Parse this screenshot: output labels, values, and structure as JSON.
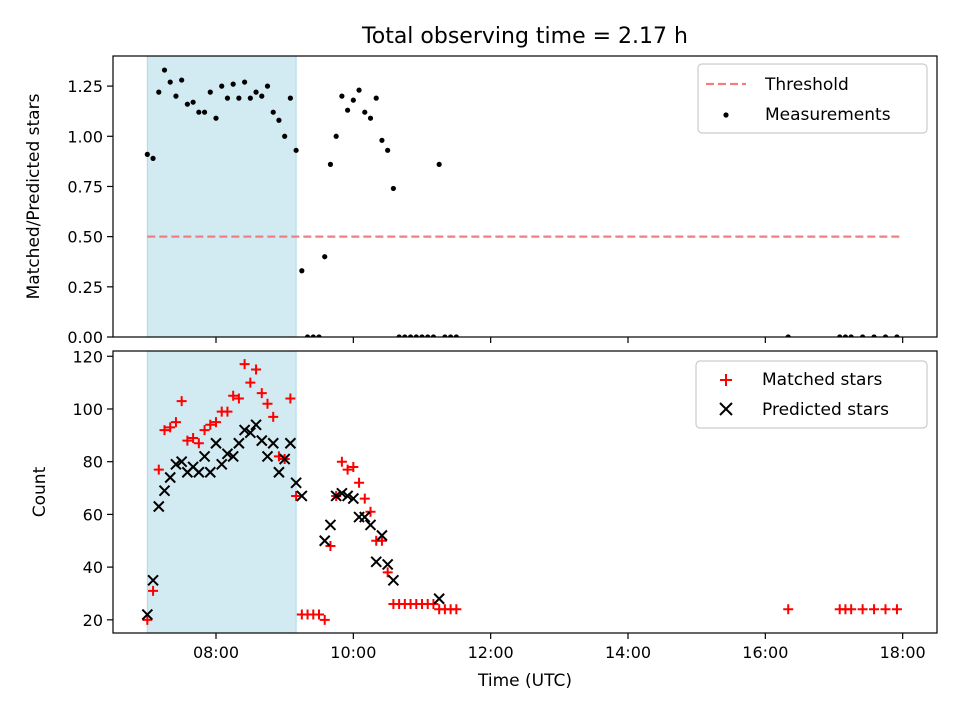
{
  "figure_title": "Total observing time = 2.17 h",
  "colors": {
    "threshold": "#f08080",
    "measurement": "#000000",
    "matched": "#ff0000",
    "predicted": "#000000",
    "shade": "#add8e6"
  },
  "chart_data": [
    {
      "type": "scatter",
      "title": "Total observing time = 2.17 h",
      "xlabel": "",
      "ylabel": "Matched/Predicted stars",
      "xlim": [
        "06:30",
        "18:30"
      ],
      "ylim": [
        0,
        1.4
      ],
      "yticks": [
        "0.00",
        "0.25",
        "0.50",
        "0.75",
        "1.00",
        "1.25"
      ],
      "legend_position": "top-right",
      "shaded_interval": [
        "07:00",
        "09:10"
      ],
      "threshold": {
        "name": "Threshold",
        "y": 0.5,
        "x": [
          "07:00",
          "17:58"
        ],
        "style": "dashed"
      },
      "series": [
        {
          "name": "Measurements",
          "marker": "dot",
          "points": [
            [
              "07:00",
              0.91
            ],
            [
              "07:05",
              0.89
            ],
            [
              "07:10",
              1.22
            ],
            [
              "07:15",
              1.33
            ],
            [
              "07:20",
              1.27
            ],
            [
              "07:25",
              1.2
            ],
            [
              "07:30",
              1.28
            ],
            [
              "07:35",
              1.16
            ],
            [
              "07:40",
              1.17
            ],
            [
              "07:45",
              1.12
            ],
            [
              "07:50",
              1.12
            ],
            [
              "07:55",
              1.22
            ],
            [
              "08:00",
              1.09
            ],
            [
              "08:05",
              1.25
            ],
            [
              "08:10",
              1.19
            ],
            [
              "08:15",
              1.26
            ],
            [
              "08:20",
              1.19
            ],
            [
              "08:25",
              1.27
            ],
            [
              "08:30",
              1.19
            ],
            [
              "08:35",
              1.22
            ],
            [
              "08:40",
              1.2
            ],
            [
              "08:45",
              1.25
            ],
            [
              "08:50",
              1.12
            ],
            [
              "08:55",
              1.08
            ],
            [
              "09:00",
              1.0
            ],
            [
              "09:05",
              1.19
            ],
            [
              "09:10",
              0.93
            ],
            [
              "09:15",
              0.33
            ],
            [
              "09:20",
              0.0
            ],
            [
              "09:25",
              0.0
            ],
            [
              "09:30",
              0.0
            ],
            [
              "09:35",
              0.4
            ],
            [
              "09:40",
              0.86
            ],
            [
              "09:45",
              1.0
            ],
            [
              "09:50",
              1.2
            ],
            [
              "09:55",
              1.13
            ],
            [
              "10:00",
              1.18
            ],
            [
              "10:05",
              1.23
            ],
            [
              "10:10",
              1.12
            ],
            [
              "10:15",
              1.09
            ],
            [
              "10:20",
              1.19
            ],
            [
              "10:25",
              0.98
            ],
            [
              "10:30",
              0.93
            ],
            [
              "10:35",
              0.74
            ],
            [
              "10:40",
              0.0
            ],
            [
              "10:45",
              0.0
            ],
            [
              "10:50",
              0.0
            ],
            [
              "10:55",
              0.0
            ],
            [
              "11:00",
              0.0
            ],
            [
              "11:05",
              0.0
            ],
            [
              "11:10",
              0.0
            ],
            [
              "11:15",
              0.86
            ],
            [
              "11:20",
              0.0
            ],
            [
              "11:25",
              0.0
            ],
            [
              "11:30",
              0.0
            ],
            [
              "16:20",
              0.0
            ],
            [
              "17:05",
              0.0
            ],
            [
              "17:10",
              0.0
            ],
            [
              "17:15",
              0.0
            ],
            [
              "17:25",
              0.0
            ],
            [
              "17:35",
              0.0
            ],
            [
              "17:45",
              0.0
            ],
            [
              "17:55",
              0.0
            ]
          ]
        }
      ]
    },
    {
      "type": "scatter",
      "title": "",
      "xlabel": "Time (UTC)",
      "ylabel": "Count",
      "xlim": [
        "06:30",
        "18:30"
      ],
      "ylim": [
        15,
        122
      ],
      "xticks": [
        "08:00",
        "10:00",
        "12:00",
        "14:00",
        "16:00",
        "18:00"
      ],
      "yticks": [
        "20",
        "40",
        "60",
        "80",
        "100",
        "120"
      ],
      "legend_position": "top-right",
      "shaded_interval": [
        "07:00",
        "09:10"
      ],
      "series": [
        {
          "name": "Matched stars",
          "marker": "plus",
          "points": [
            [
              "07:00",
              20
            ],
            [
              "07:05",
              31
            ],
            [
              "07:10",
              77
            ],
            [
              "07:15",
              92
            ],
            [
              "07:20",
              93
            ],
            [
              "07:25",
              95
            ],
            [
              "07:30",
              103
            ],
            [
              "07:35",
              88
            ],
            [
              "07:40",
              89
            ],
            [
              "07:45",
              87
            ],
            [
              "07:50",
              92
            ],
            [
              "07:55",
              94
            ],
            [
              "08:00",
              95
            ],
            [
              "08:05",
              99
            ],
            [
              "08:10",
              99
            ],
            [
              "08:15",
              105
            ],
            [
              "08:20",
              104
            ],
            [
              "08:25",
              117
            ],
            [
              "08:30",
              110
            ],
            [
              "08:35",
              115
            ],
            [
              "08:40",
              106
            ],
            [
              "08:45",
              102
            ],
            [
              "08:50",
              97
            ],
            [
              "08:55",
              82
            ],
            [
              "09:00",
              81
            ],
            [
              "09:05",
              104
            ],
            [
              "09:10",
              67
            ],
            [
              "09:15",
              22
            ],
            [
              "09:20",
              22
            ],
            [
              "09:25",
              22
            ],
            [
              "09:30",
              22
            ],
            [
              "09:35",
              20
            ],
            [
              "09:40",
              48
            ],
            [
              "09:45",
              67
            ],
            [
              "09:50",
              80
            ],
            [
              "09:55",
              77
            ],
            [
              "10:00",
              78
            ],
            [
              "10:05",
              72
            ],
            [
              "10:10",
              66
            ],
            [
              "10:15",
              61
            ],
            [
              "10:20",
              50
            ],
            [
              "10:25",
              50
            ],
            [
              "10:30",
              38
            ],
            [
              "10:35",
              26
            ],
            [
              "10:40",
              26
            ],
            [
              "10:45",
              26
            ],
            [
              "10:50",
              26
            ],
            [
              "10:55",
              26
            ],
            [
              "11:00",
              26
            ],
            [
              "11:05",
              26
            ],
            [
              "11:10",
              26
            ],
            [
              "11:15",
              24
            ],
            [
              "11:20",
              24
            ],
            [
              "11:25",
              24
            ],
            [
              "11:30",
              24
            ],
            [
              "16:20",
              24
            ],
            [
              "17:05",
              24
            ],
            [
              "17:10",
              24
            ],
            [
              "17:15",
              24
            ],
            [
              "17:25",
              24
            ],
            [
              "17:35",
              24
            ],
            [
              "17:45",
              24
            ],
            [
              "17:55",
              24
            ]
          ]
        },
        {
          "name": "Predicted stars",
          "marker": "x",
          "points": [
            [
              "07:00",
              22
            ],
            [
              "07:05",
              35
            ],
            [
              "07:10",
              63
            ],
            [
              "07:15",
              69
            ],
            [
              "07:20",
              74
            ],
            [
              "07:25",
              79
            ],
            [
              "07:30",
              80
            ],
            [
              "07:35",
              76
            ],
            [
              "07:40",
              78
            ],
            [
              "07:45",
              76
            ],
            [
              "07:50",
              82
            ],
            [
              "07:55",
              76
            ],
            [
              "08:00",
              87
            ],
            [
              "08:05",
              79
            ],
            [
              "08:10",
              83
            ],
            [
              "08:15",
              82
            ],
            [
              "08:20",
              87
            ],
            [
              "08:25",
              92
            ],
            [
              "08:30",
              91
            ],
            [
              "08:35",
              94
            ],
            [
              "08:40",
              88
            ],
            [
              "08:45",
              82
            ],
            [
              "08:50",
              87
            ],
            [
              "08:55",
              76
            ],
            [
              "09:00",
              81
            ],
            [
              "09:05",
              87
            ],
            [
              "09:10",
              72
            ],
            [
              "09:15",
              67
            ],
            [
              "09:35",
              50
            ],
            [
              "09:40",
              56
            ],
            [
              "09:45",
              67
            ],
            [
              "09:50",
              68
            ],
            [
              "09:55",
              67
            ],
            [
              "10:00",
              66
            ],
            [
              "10:05",
              59
            ],
            [
              "10:10",
              59
            ],
            [
              "10:15",
              56
            ],
            [
              "10:20",
              42
            ],
            [
              "10:25",
              52
            ],
            [
              "10:30",
              41
            ],
            [
              "10:35",
              35
            ],
            [
              "11:15",
              28
            ]
          ]
        }
      ]
    }
  ]
}
